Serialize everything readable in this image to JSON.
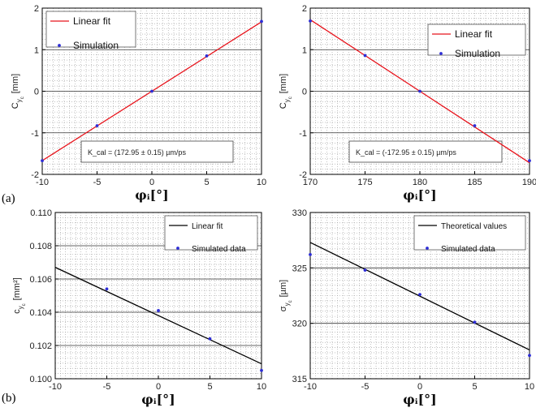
{
  "panel_labels": {
    "a": "(a)",
    "b": "(b)"
  },
  "chart_data": [
    {
      "type": "line",
      "xlabel": "φᵢ[°]",
      "ylabel_main": "C",
      "ylabel_sub1": "y",
      "ylabel_sub2": "c",
      "ylabel_unit": "[mm]",
      "xlim": [
        -10,
        10
      ],
      "ylim": [
        -2,
        2
      ],
      "xticks": [
        "-10",
        "-5",
        "0",
        "5",
        "10"
      ],
      "yticks": [
        "-2",
        "-1",
        "0",
        "1",
        "2"
      ],
      "grid": true,
      "legend_placement": "top-left",
      "series": [
        {
          "name": "Linear fit",
          "kind": "line",
          "color": "#e8141c",
          "x": [
            -10,
            10
          ],
          "y": [
            -1.67,
            1.67
          ]
        },
        {
          "name": "Simulation",
          "kind": "scatter",
          "color": "#2d2dd6",
          "x": [
            -10,
            -5,
            0,
            5,
            10
          ],
          "y": [
            -1.67,
            -0.83,
            0.0,
            0.85,
            1.68
          ]
        }
      ],
      "annotation": "K_cal = (172.95 ± 0.15) µm/ps"
    },
    {
      "type": "line",
      "xlabel": "φᵢ[°]",
      "ylabel_main": "C",
      "ylabel_sub1": "y",
      "ylabel_sub2": "c",
      "ylabel_unit": "[mm]",
      "xlim": [
        170,
        190
      ],
      "ylim": [
        -2,
        2
      ],
      "xticks": [
        "170",
        "175",
        "180",
        "185",
        "190"
      ],
      "yticks": [
        "-2",
        "-1",
        "0",
        "1",
        "2"
      ],
      "grid": true,
      "legend_placement": "top-right",
      "series": [
        {
          "name": "Linear fit",
          "kind": "line",
          "color": "#e8141c",
          "x": [
            170,
            190
          ],
          "y": [
            1.72,
            -1.72
          ]
        },
        {
          "name": "Simulation",
          "kind": "scatter",
          "color": "#2d2dd6",
          "x": [
            170,
            175,
            180,
            185,
            190
          ],
          "y": [
            1.69,
            0.86,
            0.0,
            -0.83,
            -1.67
          ]
        }
      ],
      "annotation": "K_cal = (-172.95 ± 0.15) µm/ps"
    },
    {
      "type": "line",
      "xlabel": "φᵢ[°]",
      "ylabel_main": "c",
      "ylabel_sub1": "y",
      "ylabel_sub2": "c",
      "ylabel_unit": "[mm²]",
      "xlim": [
        -10,
        10
      ],
      "ylim": [
        0.1,
        0.11
      ],
      "xticks": [
        "-10",
        "-5",
        "0",
        "5",
        "10"
      ],
      "yticks": [
        "0.100",
        "0.102",
        "0.104",
        "0.106",
        "0.108",
        "0.110"
      ],
      "grid": true,
      "legend_placement": "top-right",
      "series": [
        {
          "name": "Linear fit",
          "kind": "line",
          "color": "#000000",
          "x": [
            -10,
            10
          ],
          "y": [
            0.1067,
            0.1009
          ]
        },
        {
          "name": "Simulated data",
          "kind": "scatter",
          "color": "#2d2dd6",
          "x": [
            -5,
            0,
            5,
            10
          ],
          "y": [
            0.1054,
            0.1041,
            0.1024,
            0.1005
          ]
        }
      ]
    },
    {
      "type": "line",
      "xlabel": "φᵢ[°]",
      "ylabel_main": "σ",
      "ylabel_sub1": "y",
      "ylabel_sub2": "c",
      "ylabel_unit": "[µm]",
      "xlim": [
        -10,
        10
      ],
      "ylim": [
        315,
        330
      ],
      "xticks": [
        "-10",
        "-5",
        "0",
        "5",
        "10"
      ],
      "yticks": [
        "315",
        "320",
        "325",
        "330"
      ],
      "grid": true,
      "legend_placement": "top-right",
      "series": [
        {
          "name": "Theoretical values",
          "kind": "line",
          "color": "#000000",
          "x": [
            -10,
            10
          ],
          "y": [
            327.3,
            317.6
          ]
        },
        {
          "name": "Simulated data",
          "kind": "scatter",
          "color": "#2d2dd6",
          "x": [
            -10,
            -5,
            0,
            5,
            10
          ],
          "y": [
            326.2,
            324.8,
            322.6,
            320.1,
            317.1
          ]
        }
      ]
    }
  ]
}
